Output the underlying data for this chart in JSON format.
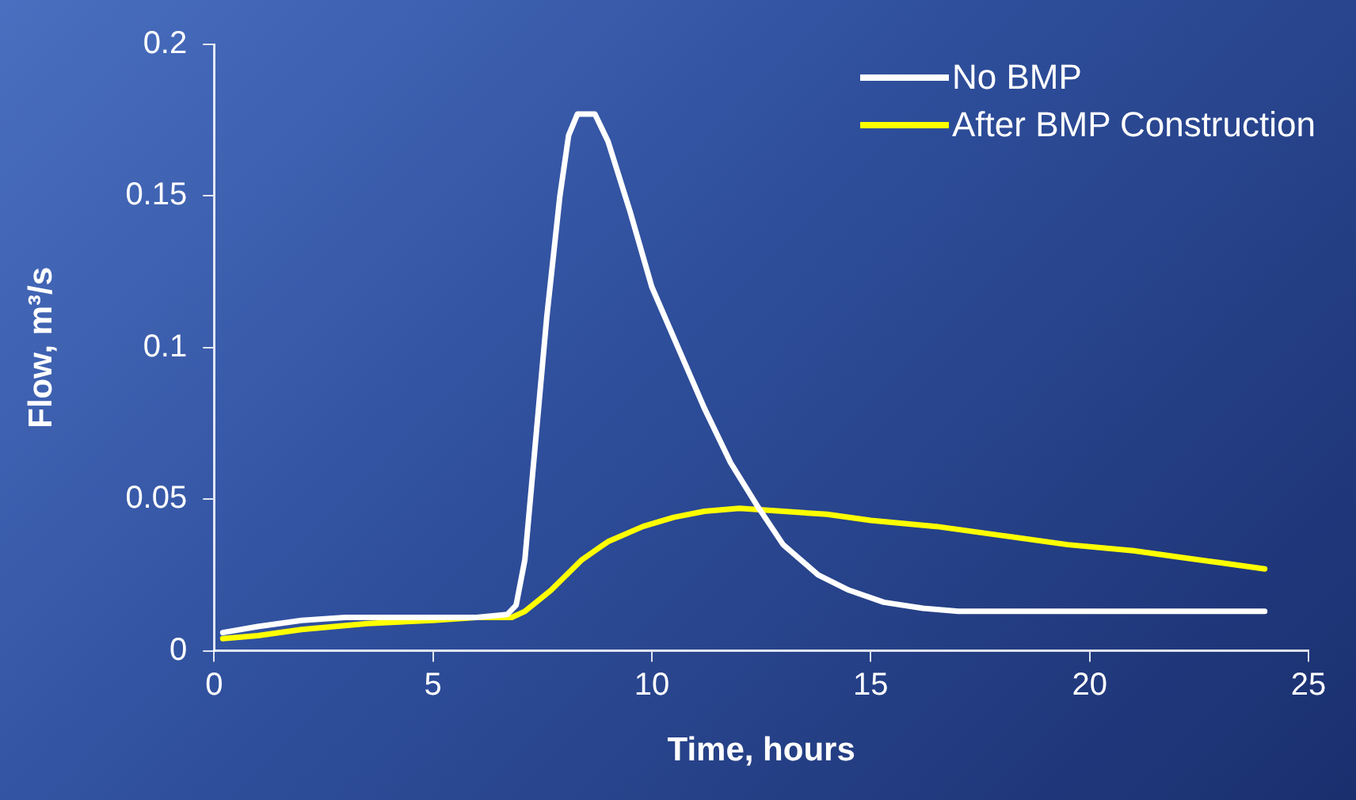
{
  "chart_data": {
    "type": "line",
    "xlabel": "Time, hours",
    "ylabel": "Flow, m³/s",
    "xlim": [
      0,
      25
    ],
    "xticks": [
      0,
      5,
      10,
      15,
      20,
      25
    ],
    "ylim": [
      0,
      0.2
    ],
    "yticks": [
      0,
      0.05,
      0.1,
      0.15,
      0.2
    ],
    "grid": false,
    "legend": "top right",
    "marker": "none",
    "line_style": "solid",
    "series": [
      {
        "name": "No BMP",
        "color": "#ffffff",
        "x": [
          0.2,
          1,
          2,
          3,
          4,
          5,
          6,
          6.7,
          6.9,
          7.1,
          7.6,
          7.9,
          8.1,
          8.3,
          8.7,
          9,
          9.5,
          10,
          10.6,
          11.2,
          11.8,
          12.4,
          13,
          13.8,
          14.5,
          15.3,
          16.2,
          17,
          20,
          24
        ],
        "values": [
          0.006,
          0.008,
          0.01,
          0.011,
          0.011,
          0.011,
          0.011,
          0.012,
          0.015,
          0.03,
          0.11,
          0.15,
          0.17,
          0.177,
          0.177,
          0.168,
          0.145,
          0.12,
          0.1,
          0.08,
          0.062,
          0.048,
          0.035,
          0.025,
          0.02,
          0.016,
          0.014,
          0.013,
          0.013,
          0.013
        ]
      },
      {
        "name": "After BMP Construction",
        "color": "#ffff00",
        "x": [
          0.2,
          1,
          2,
          3.5,
          5,
          6,
          6.8,
          7.1,
          7.7,
          8.4,
          9,
          9.8,
          10.5,
          11.2,
          12,
          13,
          14,
          15,
          16.5,
          18,
          19.5,
          21,
          22,
          23,
          24
        ],
        "values": [
          0.004,
          0.005,
          0.007,
          0.009,
          0.01,
          0.011,
          0.011,
          0.013,
          0.02,
          0.03,
          0.036,
          0.041,
          0.044,
          0.046,
          0.047,
          0.046,
          0.045,
          0.043,
          0.041,
          0.038,
          0.035,
          0.033,
          0.031,
          0.029,
          0.027
        ]
      }
    ]
  }
}
